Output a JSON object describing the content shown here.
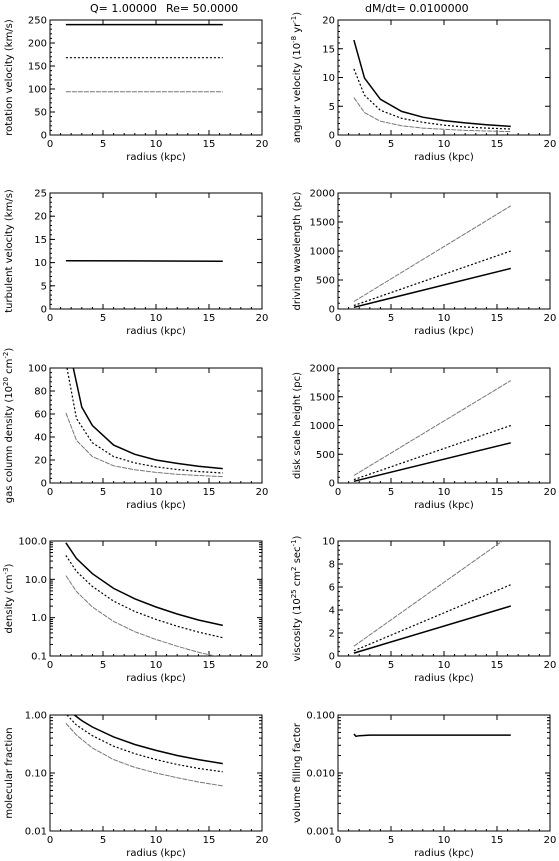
{
  "header": {
    "q_label": "Q=  1.00000",
    "re_label": "Re=  50.0000",
    "dmdt_label": "dM/dt=  0.0100000"
  },
  "chart_data": [
    {
      "id": "rotation-velocity",
      "type": "line",
      "xlabel": "radius (kpc)",
      "ylabel": "rotation velocity (km/s)",
      "xlim": [
        0,
        20
      ],
      "ylim": [
        0,
        250
      ],
      "yscale": "linear",
      "xticks": [
        0,
        5,
        10,
        15,
        20
      ],
      "yticks": [
        0,
        50,
        100,
        150,
        200,
        250
      ],
      "series": [
        {
          "style": "solid",
          "x": [
            1.5,
            16.3
          ],
          "y": [
            240,
            240
          ]
        },
        {
          "style": "dotted",
          "x": [
            1.5,
            16.3
          ],
          "y": [
            168,
            168
          ]
        },
        {
          "style": "dashed",
          "x": [
            1.5,
            16.3
          ],
          "y": [
            94,
            94
          ]
        }
      ]
    },
    {
      "id": "angular-velocity",
      "type": "line",
      "xlabel": "radius (kpc)",
      "ylabel": "angular velocity (10^-8 yr^-1)",
      "xlim": [
        0,
        20
      ],
      "ylim": [
        0,
        20
      ],
      "yscale": "linear",
      "xticks": [
        0,
        5,
        10,
        15,
        20
      ],
      "yticks": [
        0,
        5,
        10,
        15,
        20
      ],
      "series": [
        {
          "style": "solid",
          "x": [
            1.5,
            2.5,
            4,
            6,
            8,
            10,
            12,
            14,
            16.3
          ],
          "y": [
            16.5,
            9.9,
            6.2,
            4.1,
            3.1,
            2.5,
            2.1,
            1.8,
            1.5
          ]
        },
        {
          "style": "dotted",
          "x": [
            1.5,
            2.5,
            4,
            6,
            8,
            10,
            12,
            14,
            16.3
          ],
          "y": [
            11.5,
            6.9,
            4.3,
            2.9,
            2.2,
            1.7,
            1.4,
            1.2,
            1.05
          ]
        },
        {
          "style": "dashed",
          "x": [
            1.5,
            2.5,
            4,
            6,
            8,
            10,
            12,
            14,
            16.3
          ],
          "y": [
            6.5,
            3.9,
            2.4,
            1.6,
            1.2,
            1.0,
            0.8,
            0.7,
            0.6
          ]
        }
      ]
    },
    {
      "id": "turbulent-velocity",
      "type": "line",
      "xlabel": "radius (kpc)",
      "ylabel": "turbulent velocity (km/s)",
      "xlim": [
        0,
        20
      ],
      "ylim": [
        0,
        25
      ],
      "yscale": "linear",
      "xticks": [
        0,
        5,
        10,
        15,
        20
      ],
      "yticks": [
        0,
        5,
        10,
        15,
        20,
        25
      ],
      "series": [
        {
          "style": "solid",
          "x": [
            1.5,
            16.3
          ],
          "y": [
            10.4,
            10.3
          ]
        }
      ]
    },
    {
      "id": "driving-wavelength",
      "type": "line",
      "xlabel": "radius (kpc)",
      "ylabel": "driving wavelength (pc)",
      "xlim": [
        0,
        20
      ],
      "ylim": [
        0,
        2000
      ],
      "yscale": "linear",
      "xticks": [
        0,
        5,
        10,
        15,
        20
      ],
      "yticks": [
        0,
        500,
        1000,
        1500,
        2000
      ],
      "series": [
        {
          "style": "dashed",
          "x": [
            1.5,
            16.3
          ],
          "y": [
            130,
            1780
          ]
        },
        {
          "style": "dotted",
          "x": [
            1.5,
            16.3
          ],
          "y": [
            60,
            1000
          ]
        },
        {
          "style": "solid",
          "x": [
            1.5,
            16.3
          ],
          "y": [
            30,
            700
          ]
        }
      ]
    },
    {
      "id": "gas-column-density",
      "type": "line",
      "xlabel": "radius (kpc)",
      "ylabel": "gas column density (10^20 cm^-2)",
      "xlim": [
        0,
        20
      ],
      "ylim": [
        0,
        100
      ],
      "yscale": "linear",
      "xticks": [
        0,
        5,
        10,
        15,
        20
      ],
      "yticks": [
        0,
        20,
        40,
        60,
        80,
        100
      ],
      "series": [
        {
          "style": "solid",
          "x": [
            2.2,
            3,
            4,
            6,
            8,
            10,
            12,
            14,
            16.3
          ],
          "y": [
            100,
            66,
            50,
            33,
            25,
            20,
            17,
            14.5,
            12.5
          ]
        },
        {
          "style": "dotted",
          "x": [
            1.6,
            2.5,
            4,
            6,
            8,
            10,
            12,
            14,
            16.3
          ],
          "y": [
            100,
            56,
            35,
            23,
            17.5,
            14,
            11.7,
            10,
            8.7
          ]
        },
        {
          "style": "dashed",
          "x": [
            1.5,
            2.5,
            4,
            6,
            8,
            10,
            12,
            14,
            16.3
          ],
          "y": [
            61,
            37,
            23,
            15,
            11.5,
            9.2,
            7.6,
            6.5,
            5.6
          ]
        }
      ]
    },
    {
      "id": "disk-scale-height",
      "type": "line",
      "xlabel": "radius (kpc)",
      "ylabel": "disk scale height (pc)",
      "xlim": [
        0,
        20
      ],
      "ylim": [
        0,
        2000
      ],
      "yscale": "linear",
      "xticks": [
        0,
        5,
        10,
        15,
        20
      ],
      "yticks": [
        0,
        500,
        1000,
        1500,
        2000
      ],
      "series": [
        {
          "style": "dashed",
          "x": [
            1.5,
            16.3
          ],
          "y": [
            130,
            1780
          ]
        },
        {
          "style": "dotted",
          "x": [
            1.5,
            16.3
          ],
          "y": [
            60,
            1000
          ]
        },
        {
          "style": "solid",
          "x": [
            1.5,
            16.3
          ],
          "y": [
            30,
            700
          ]
        }
      ]
    },
    {
      "id": "density",
      "type": "line",
      "xlabel": "radius (kpc)",
      "ylabel": "density (cm^-3)",
      "xlim": [
        0,
        20
      ],
      "ylim": [
        0.1,
        100
      ],
      "yscale": "log",
      "xticks": [
        0,
        5,
        10,
        15,
        20
      ],
      "yticks": [
        0.1,
        1.0,
        10.0,
        100.0
      ],
      "ytick_labels": [
        "0.1",
        "1.0",
        "10.0",
        "100.0"
      ],
      "series": [
        {
          "style": "solid",
          "x": [
            1.5,
            2.5,
            4,
            6,
            8,
            10,
            12,
            14,
            16.3
          ],
          "y": [
            90,
            35,
            14,
            5.8,
            3.1,
            1.9,
            1.25,
            0.87,
            0.63
          ]
        },
        {
          "style": "dotted",
          "x": [
            1.5,
            2.5,
            4,
            6,
            8,
            10,
            12,
            14,
            16.3
          ],
          "y": [
            42,
            16,
            6.5,
            2.7,
            1.45,
            0.9,
            0.6,
            0.42,
            0.3
          ]
        },
        {
          "style": "dashed",
          "x": [
            1.5,
            2.5,
            4,
            6,
            8,
            10,
            12,
            14,
            16.3
          ],
          "y": [
            12.5,
            4.8,
            1.9,
            0.8,
            0.43,
            0.27,
            0.18,
            0.125,
            0.09
          ]
        }
      ]
    },
    {
      "id": "viscosity",
      "type": "line",
      "xlabel": "radius (kpc)",
      "ylabel": "viscosity (10^25 cm^2 sec^-1)",
      "xlim": [
        0,
        20
      ],
      "ylim": [
        0,
        10
      ],
      "yscale": "linear",
      "xticks": [
        0,
        5,
        10,
        15,
        20
      ],
      "yticks": [
        0,
        2,
        4,
        6,
        8,
        10
      ],
      "series": [
        {
          "style": "dashed",
          "x": [
            1.5,
            15.5
          ],
          "y": [
            0.85,
            10.0
          ]
        },
        {
          "style": "dotted",
          "x": [
            1.5,
            16.3
          ],
          "y": [
            0.45,
            6.2
          ]
        },
        {
          "style": "solid",
          "x": [
            1.5,
            16.3
          ],
          "y": [
            0.25,
            4.35
          ]
        }
      ]
    },
    {
      "id": "molecular-fraction",
      "type": "line",
      "xlabel": "radius (kpc)",
      "ylabel": "molecular fraction",
      "xlim": [
        0,
        20
      ],
      "ylim": [
        0.01,
        1.0
      ],
      "yscale": "log",
      "xticks": [
        0,
        5,
        10,
        15,
        20
      ],
      "yticks": [
        0.01,
        0.1,
        1.0
      ],
      "ytick_labels": [
        "0.01",
        "0.10",
        "1.00"
      ],
      "series": [
        {
          "style": "solid",
          "x": [
            2.3,
            3,
            4,
            6,
            8,
            10,
            12,
            14,
            16.3
          ],
          "y": [
            1.0,
            0.8,
            0.62,
            0.42,
            0.31,
            0.245,
            0.2,
            0.17,
            0.145
          ]
        },
        {
          "style": "dotted",
          "x": [
            1.6,
            2.5,
            4,
            6,
            8,
            10,
            12,
            14,
            16.3
          ],
          "y": [
            1.0,
            0.67,
            0.44,
            0.29,
            0.215,
            0.17,
            0.14,
            0.12,
            0.105
          ]
        },
        {
          "style": "dashed",
          "x": [
            1.5,
            2.5,
            4,
            6,
            8,
            10,
            12,
            14,
            16.3
          ],
          "y": [
            0.72,
            0.45,
            0.27,
            0.17,
            0.125,
            0.1,
            0.083,
            0.07,
            0.06
          ]
        }
      ]
    },
    {
      "id": "volume-filling-factor",
      "type": "line",
      "xlabel": "radius (kpc)",
      "ylabel": "volume filling factor",
      "xlim": [
        0,
        20
      ],
      "ylim": [
        0.001,
        0.1
      ],
      "yscale": "log",
      "xticks": [
        0,
        5,
        10,
        15,
        20
      ],
      "yticks": [
        0.001,
        0.01,
        0.1
      ],
      "ytick_labels": [
        "0.001",
        "0.010",
        "0.100"
      ],
      "series": [
        {
          "style": "solid",
          "x": [
            1.5,
            1.7,
            2.0,
            3,
            6,
            10,
            16.3
          ],
          "y": [
            0.047,
            0.043,
            0.044,
            0.045,
            0.045,
            0.045,
            0.045
          ]
        }
      ]
    }
  ]
}
